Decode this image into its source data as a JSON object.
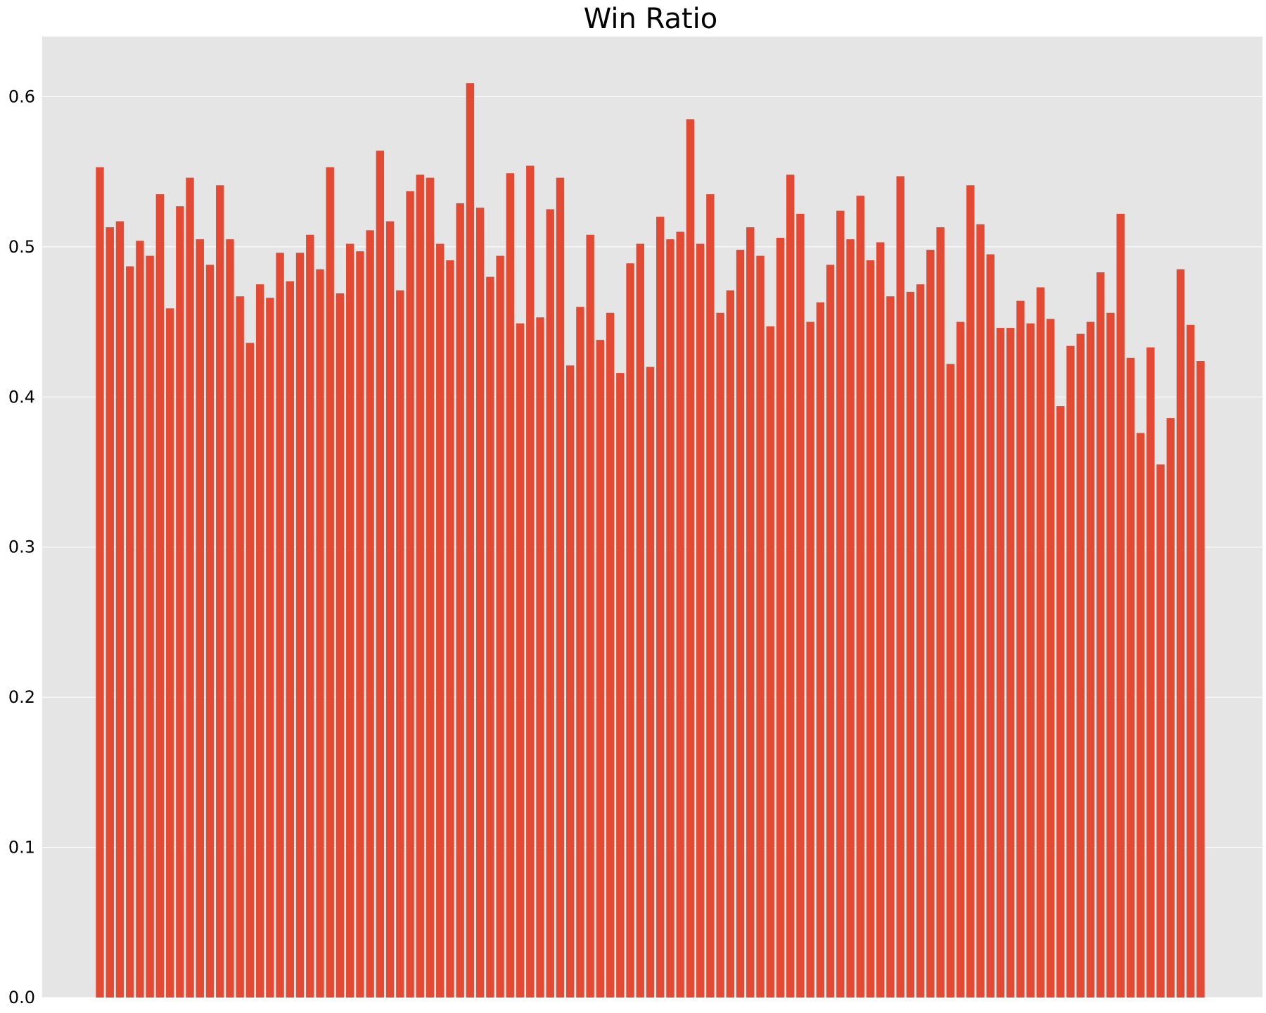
{
  "chart_data": {
    "type": "bar",
    "title": "Win Ratio",
    "xlabel": "",
    "ylabel": "",
    "ylim": [
      0,
      0.64
    ],
    "yticks": [
      0.0,
      0.1,
      0.2,
      0.3,
      0.4,
      0.5,
      0.6
    ],
    "ytick_labels": [
      "0.0",
      "0.1",
      "0.2",
      "0.3",
      "0.4",
      "0.5",
      "0.6"
    ],
    "grid": true,
    "colors": {
      "background": "#e5e5e5",
      "bar": "#e24a33",
      "grid": "#ffffff"
    },
    "values": [
      0.553,
      0.513,
      0.517,
      0.487,
      0.504,
      0.494,
      0.535,
      0.459,
      0.527,
      0.546,
      0.505,
      0.488,
      0.541,
      0.505,
      0.467,
      0.436,
      0.475,
      0.466,
      0.496,
      0.477,
      0.496,
      0.508,
      0.485,
      0.553,
      0.469,
      0.502,
      0.497,
      0.511,
      0.564,
      0.517,
      0.471,
      0.537,
      0.548,
      0.546,
      0.502,
      0.491,
      0.529,
      0.609,
      0.526,
      0.48,
      0.494,
      0.549,
      0.449,
      0.554,
      0.453,
      0.525,
      0.546,
      0.421,
      0.46,
      0.508,
      0.438,
      0.456,
      0.416,
      0.489,
      0.502,
      0.42,
      0.52,
      0.505,
      0.51,
      0.585,
      0.502,
      0.535,
      0.456,
      0.471,
      0.498,
      0.513,
      0.494,
      0.447,
      0.506,
      0.548,
      0.522,
      0.45,
      0.463,
      0.488,
      0.524,
      0.505,
      0.534,
      0.491,
      0.503,
      0.467,
      0.547,
      0.47,
      0.475,
      0.498,
      0.513,
      0.422,
      0.45,
      0.541,
      0.515,
      0.495,
      0.446,
      0.446,
      0.464,
      0.449,
      0.473,
      0.452,
      0.394,
      0.434,
      0.442,
      0.45,
      0.483,
      0.456,
      0.522,
      0.426,
      0.376,
      0.433,
      0.355,
      0.386,
      0.485,
      0.448,
      0.424
    ]
  }
}
